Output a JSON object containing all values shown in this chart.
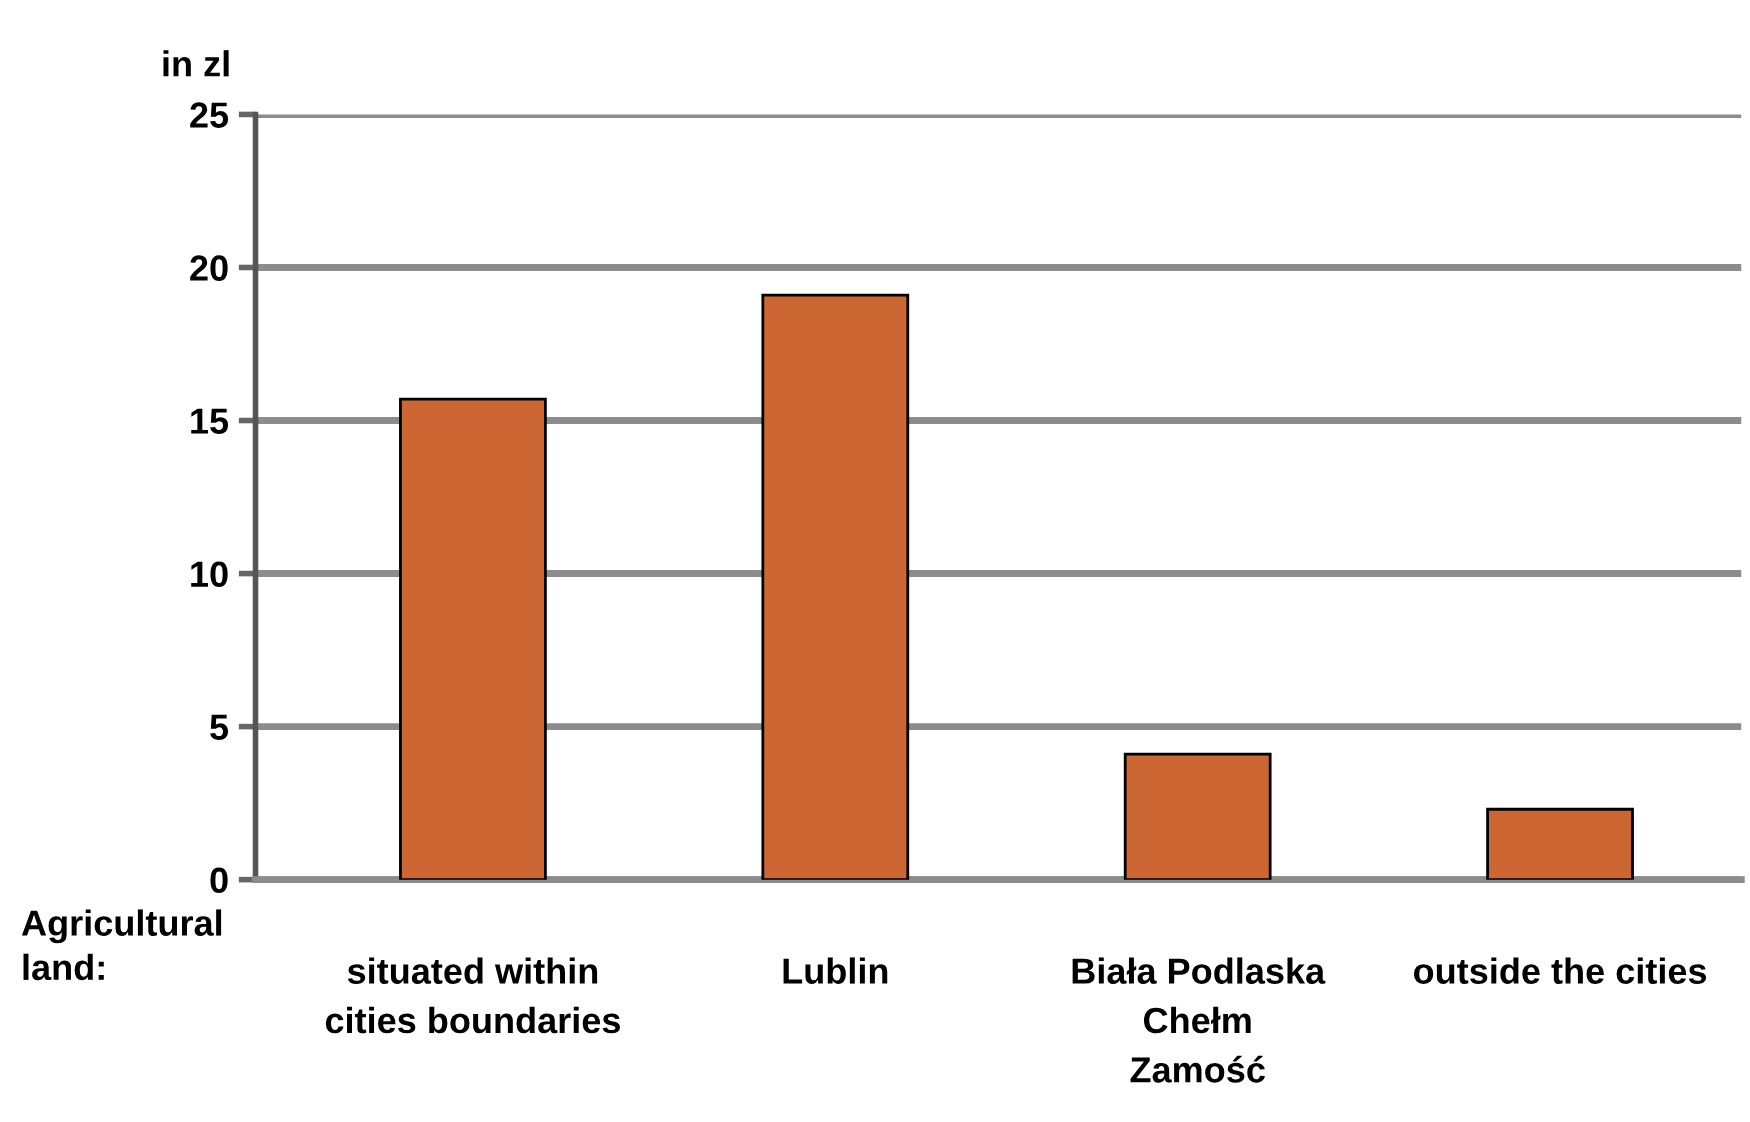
{
  "chart_data": {
    "type": "bar",
    "ylabel": "in zl",
    "categories": [
      "situated within\ncities boundaries",
      "Lublin",
      "Biała Podlaska\nChełm\nZamość",
      "outside the cities"
    ],
    "values": [
      15.7,
      19.1,
      4.1,
      2.3
    ],
    "color": "#cc6633",
    "ylim": [
      0,
      25
    ],
    "yticks": [
      0,
      5,
      10,
      15,
      20,
      25
    ],
    "grid": "y",
    "legend": false,
    "annotations": [
      "Agricultural\nland:"
    ]
  }
}
